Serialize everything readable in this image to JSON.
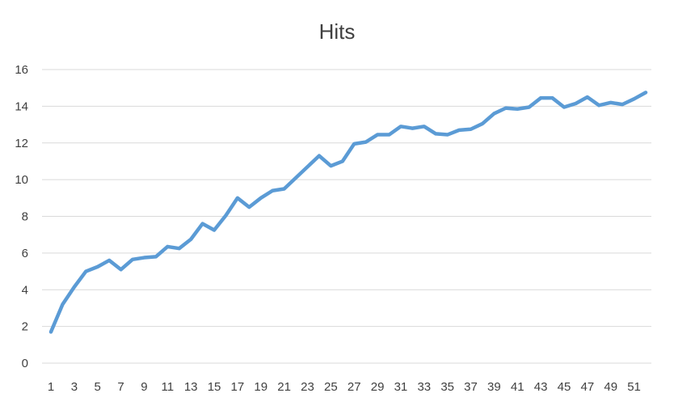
{
  "chart_data": {
    "type": "line",
    "title": "Hits",
    "xlabel": "",
    "ylabel": "",
    "x": [
      1,
      2,
      3,
      4,
      5,
      6,
      7,
      8,
      9,
      10,
      11,
      12,
      13,
      14,
      15,
      16,
      17,
      18,
      19,
      20,
      21,
      22,
      23,
      24,
      25,
      26,
      27,
      28,
      29,
      30,
      31,
      32,
      33,
      34,
      35,
      36,
      37,
      38,
      39,
      40,
      41,
      42,
      43,
      44,
      45,
      46,
      47,
      48,
      49,
      50,
      51,
      52
    ],
    "x_tick_labels": [
      "1",
      "3",
      "5",
      "7",
      "9",
      "11",
      "13",
      "15",
      "17",
      "19",
      "21",
      "23",
      "25",
      "27",
      "29",
      "31",
      "33",
      "35",
      "37",
      "39",
      "41",
      "43",
      "45",
      "47",
      "49",
      "51"
    ],
    "ylim": [
      0,
      16
    ],
    "y_ticks": [
      "0",
      "2",
      "4",
      "6",
      "8",
      "10",
      "12",
      "14",
      "16"
    ],
    "grid": true,
    "legend": "none",
    "series": [
      {
        "color": "#5b9bd5",
        "values": [
          1.7,
          3.2,
          4.15,
          5.0,
          5.25,
          5.6,
          5.1,
          5.65,
          5.75,
          5.8,
          6.35,
          6.25,
          6.75,
          7.6,
          7.25,
          8.05,
          9.0,
          8.5,
          9.0,
          9.4,
          9.5,
          10.1,
          10.7,
          11.3,
          10.75,
          11.0,
          11.95,
          12.05,
          12.45,
          12.45,
          12.9,
          12.8,
          12.9,
          12.5,
          12.45,
          12.7,
          12.75,
          13.05,
          13.6,
          13.9,
          13.85,
          13.95,
          14.45,
          14.45,
          13.95,
          14.15,
          14.5,
          14.05,
          14.2,
          14.1,
          14.4,
          14.75
        ]
      }
    ]
  }
}
